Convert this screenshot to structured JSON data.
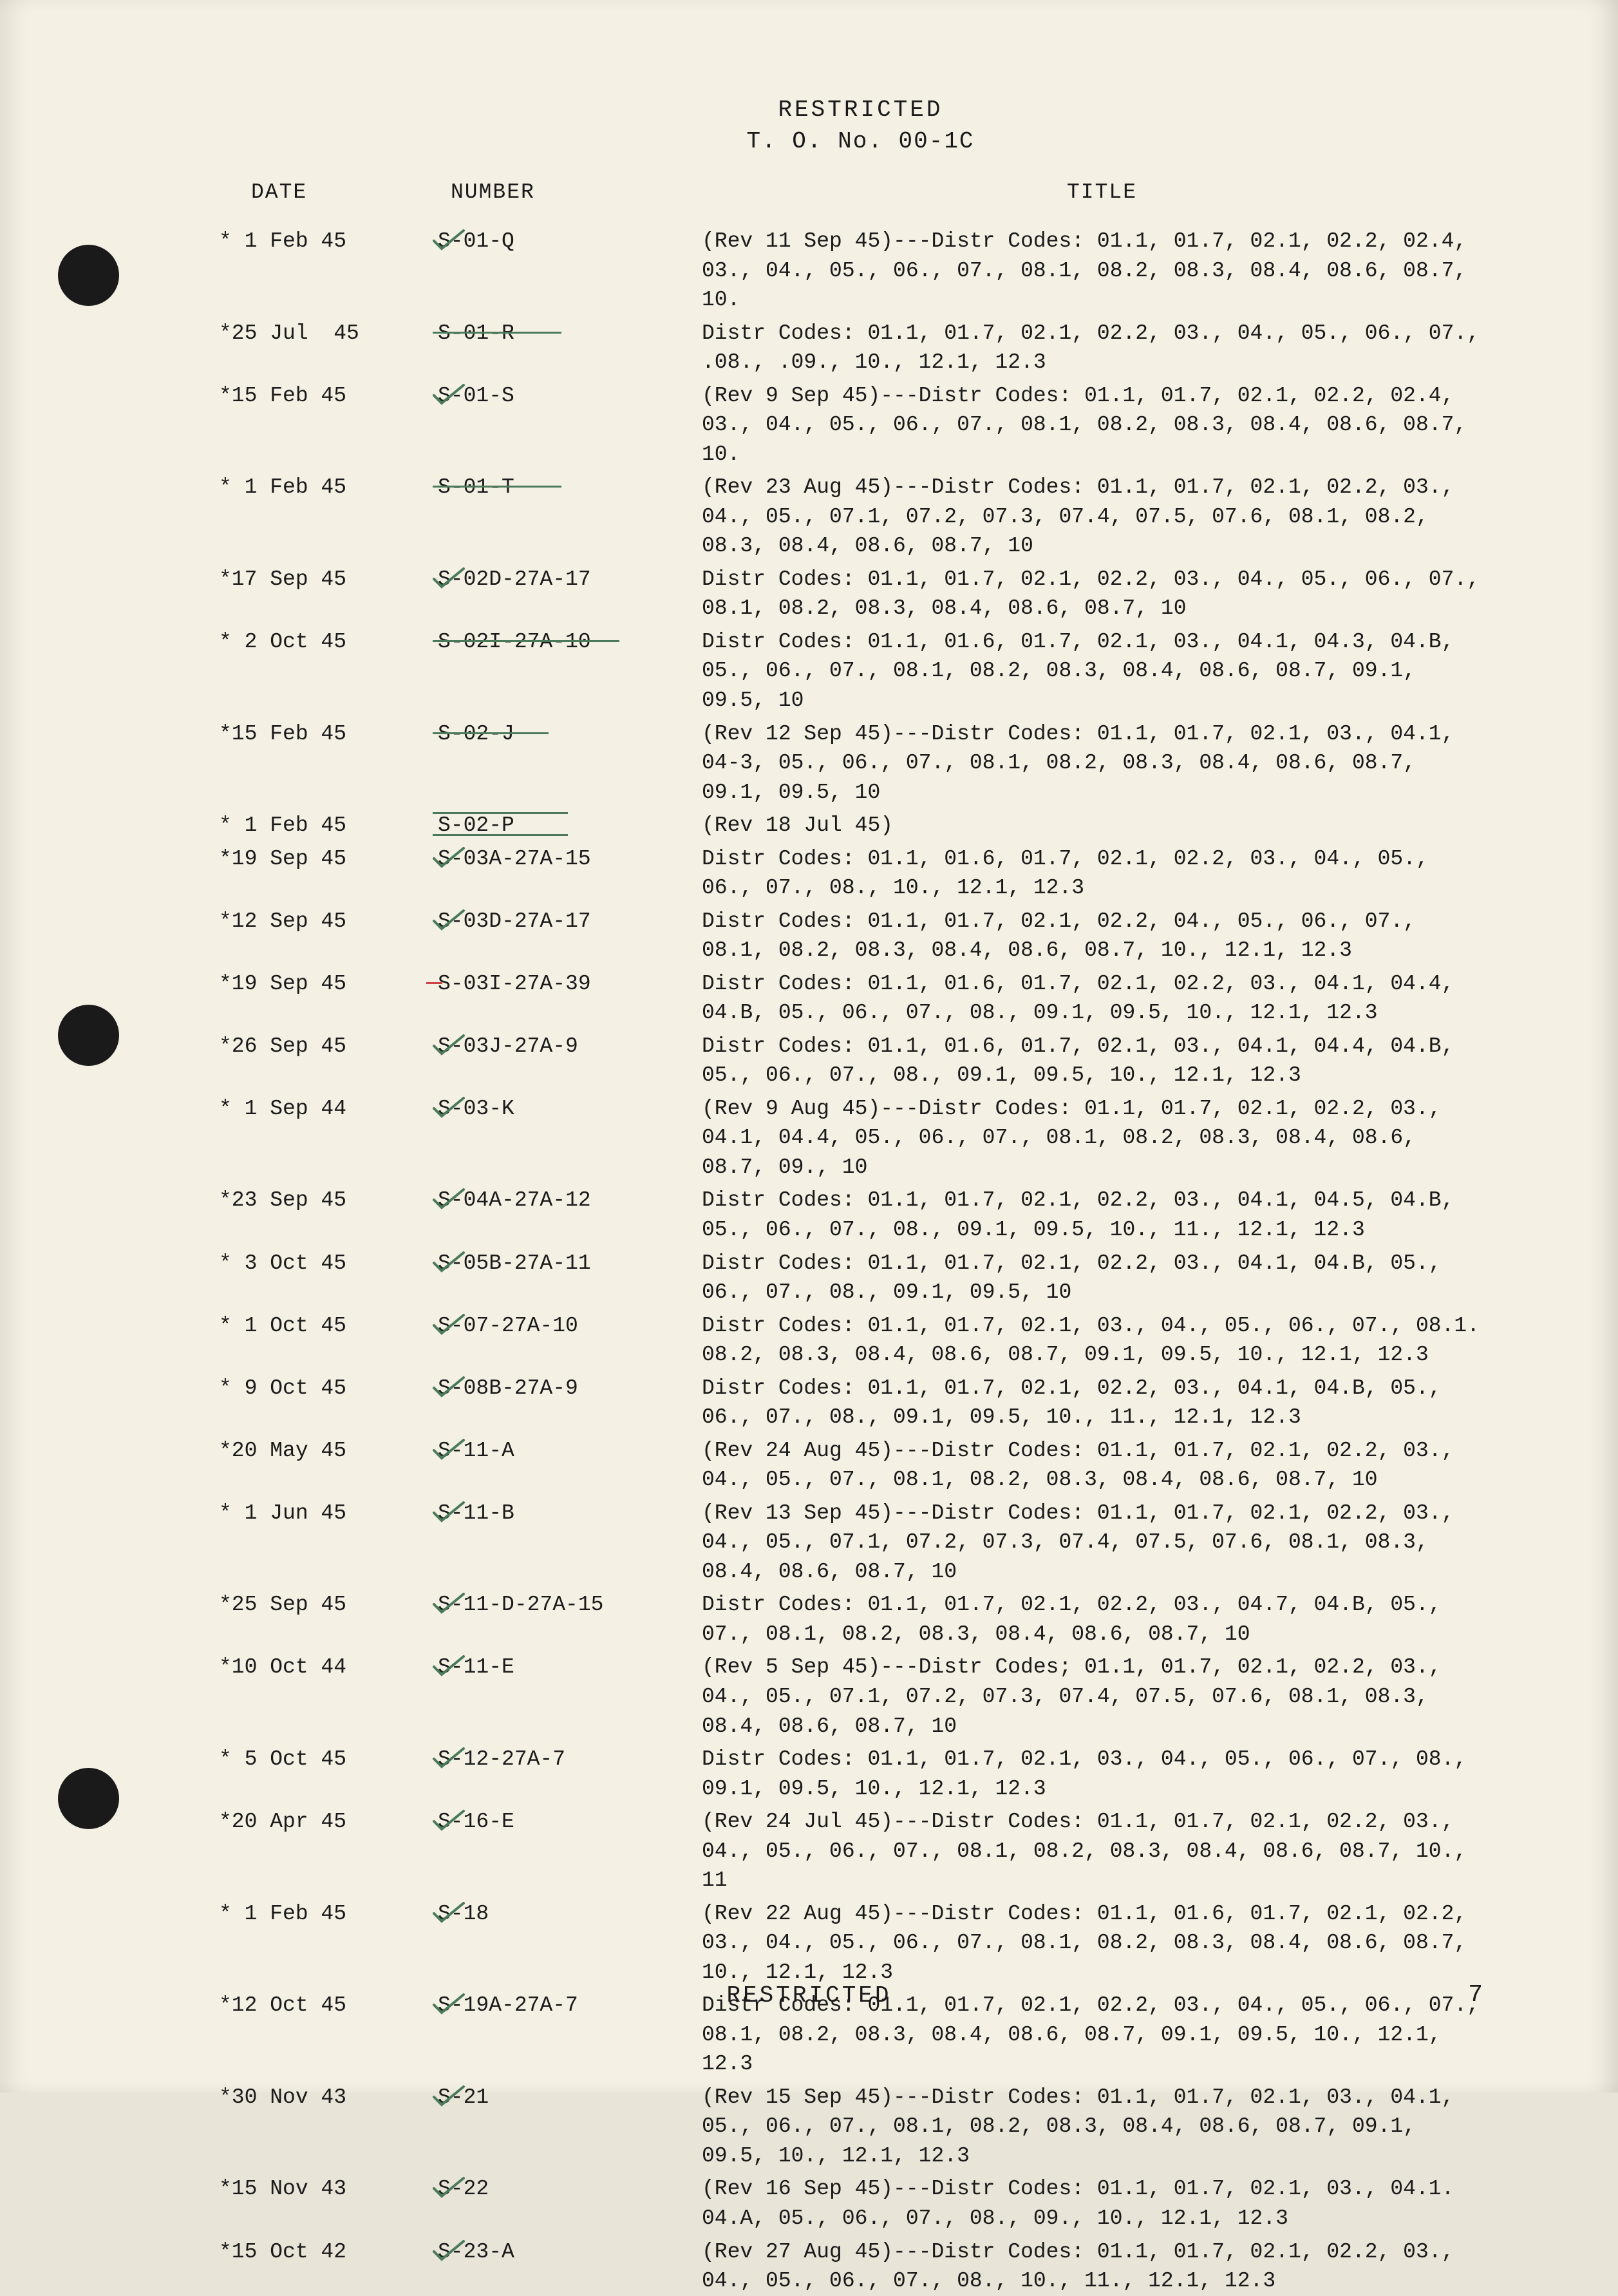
{
  "header": {
    "classification": "RESTRICTED",
    "docNumber": "T. O. No. 00-1C"
  },
  "columnHeaders": {
    "date": "DATE",
    "number": "NUMBER",
    "title": "TITLE"
  },
  "footer": {
    "classification": "RESTRICTED",
    "pageNumber": "7"
  },
  "colors": {
    "pageBg": "#f4f0e4",
    "text": "#1a1a1a",
    "checkGreen": "#4a7a5a",
    "strikeGreen": "#4a7a5a",
    "redMark": "#c44"
  },
  "rows": [
    {
      "date": "* 1 Feb 45",
      "number": "S-01-Q",
      "mark": "check",
      "title": "(Rev 11 Sep 45)---Distr Codes: 01.1, 01.7, 02.1, 02.2, 02.4, 03., 04., 05., 06., 07., 08.1, 08.2, 08.3, 08.4, 08.6, 08.7, 10."
    },
    {
      "date": "*25 Jul  45",
      "number": "S-01-R",
      "mark": "strike",
      "strikeW": 200,
      "title": "Distr Codes: 01.1, 01.7, 02.1, 02.2, 03., 04., 05., 06., 07., .08., .09., 10., 12.1, 12.3"
    },
    {
      "date": "*15 Feb 45",
      "number": "S-01-S",
      "mark": "check",
      "title": "(Rev 9 Sep 45)---Distr Codes: 01.1, 01.7, 02.1, 02.2, 02.4, 03., 04., 05., 06., 07., 08.1, 08.2, 08.3, 08.4, 08.6, 08.7, 10."
    },
    {
      "date": "* 1 Feb 45",
      "number": "S-01-T",
      "mark": "strike",
      "strikeW": 200,
      "title": "(Rev 23 Aug 45)---Distr Codes: 01.1, 01.7, 02.1, 02.2, 03., 04., 05., 07.1, 07.2, 07.3, 07.4, 07.5, 07.6, 08.1, 08.2, 08.3, 08.4, 08.6, 08.7, 10"
    },
    {
      "date": "*17 Sep 45",
      "number": "S-02D-27A-17",
      "mark": "check",
      "title": "Distr Codes: 01.1, 01.7, 02.1, 02.2, 03., 04., 05., 06., 07., 08.1, 08.2, 08.3, 08.4, 08.6, 08.7, 10"
    },
    {
      "date": "* 2 Oct 45",
      "number": "S-02I-27A-10",
      "mark": "strike",
      "strikeW": 290,
      "title": "Distr Codes: 01.1, 01.6, 01.7, 02.1, 03., 04.1, 04.3, 04.B, 05., 06., 07., 08.1, 08.2, 08.3, 08.4, 08.6, 08.7, 09.1, 09.5, 10"
    },
    {
      "date": "*15 Feb 45",
      "number": "S-02-J",
      "mark": "strike",
      "strikeW": 180,
      "title": "(Rev 12 Sep 45)---Distr Codes: 01.1, 01.7, 02.1, 03., 04.1, 04-3, 05., 06., 07., 08.1, 08.2, 08.3, 08.4, 08.6, 08.7, 09.1, 09.5, 10"
    },
    {
      "date": "* 1 Feb 45",
      "number": "S-02-P",
      "mark": "underline",
      "strikeW": 210,
      "title": "(Rev 18 Jul 45)"
    },
    {
      "date": "*19 Sep 45",
      "number": "S-03A-27A-15",
      "mark": "check",
      "title": "Distr Codes: 01.1, 01.6, 01.7, 02.1, 02.2, 03., 04., 05., 06., 07., 08., 10., 12.1, 12.3"
    },
    {
      "date": "*12 Sep 45",
      "number": "S-03D-27A-17",
      "mark": "check",
      "title": "Distr Codes: 01.1, 01.7, 02.1, 02.2, 04., 05., 06., 07., 08.1, 08.2, 08.3, 08.4, 08.6, 08.7, 10., 12.1, 12.3"
    },
    {
      "date": "*19 Sep 45",
      "number": "S-03I-27A-39",
      "mark": "red",
      "title": "Distr Codes: 01.1, 01.6, 01.7, 02.1, 02.2, 03., 04.1, 04.4, 04.B, 05., 06., 07., 08., 09.1, 09.5, 10., 12.1, 12.3"
    },
    {
      "date": "*26 Sep 45",
      "number": "S-03J-27A-9",
      "mark": "check",
      "title": "Distr Codes: 01.1, 01.6, 01.7, 02.1, 03., 04.1, 04.4, 04.B, 05., 06., 07., 08., 09.1, 09.5, 10., 12.1, 12.3"
    },
    {
      "date": "* 1 Sep 44",
      "number": "S-03-K",
      "mark": "check",
      "title": "(Rev 9 Aug 45)---Distr Codes: 01.1, 01.7, 02.1, 02.2, 03., 04.1, 04.4, 05., 06., 07., 08.1, 08.2, 08.3, 08.4, 08.6, 08.7, 09., 10"
    },
    {
      "date": "*23 Sep 45",
      "number": "S-04A-27A-12",
      "mark": "check",
      "title": "Distr Codes: 01.1, 01.7, 02.1, 02.2, 03., 04.1, 04.5, 04.B, 05., 06., 07., 08., 09.1, 09.5, 10., 11., 12.1, 12.3"
    },
    {
      "date": "* 3 Oct 45",
      "number": "S-05B-27A-11",
      "mark": "check",
      "title": "Distr Codes: 01.1, 01.7, 02.1, 02.2, 03., 04.1, 04.B, 05., 06., 07., 08., 09.1, 09.5, 10"
    },
    {
      "date": "* 1 Oct 45",
      "number": "S-07-27A-10",
      "mark": "check",
      "title": "Distr Codes: 01.1, 01.7, 02.1, 03., 04., 05., 06., 07., 08.1. 08.2, 08.3, 08.4, 08.6, 08.7, 09.1, 09.5, 10., 12.1, 12.3"
    },
    {
      "date": "* 9 Oct 45",
      "number": "S-08B-27A-9",
      "mark": "check",
      "title": "Distr Codes: 01.1, 01.7, 02.1, 02.2, 03., 04.1, 04.B, 05., 06., 07., 08., 09.1, 09.5, 10., 11., 12.1, 12.3"
    },
    {
      "date": "*20 May 45",
      "number": "S-11-A",
      "mark": "check",
      "title": "(Rev 24 Aug 45)---Distr Codes: 01.1, 01.7, 02.1, 02.2, 03., 04., 05., 07., 08.1, 08.2, 08.3, 08.4, 08.6, 08.7, 10"
    },
    {
      "date": "* 1 Jun 45",
      "number": "S-11-B",
      "mark": "check",
      "title": "(Rev 13 Sep 45)---Distr Codes: 01.1, 01.7, 02.1, 02.2, 03., 04., 05., 07.1, 07.2, 07.3, 07.4, 07.5, 07.6, 08.1, 08.3, 08.4, 08.6, 08.7, 10"
    },
    {
      "date": "*25 Sep 45",
      "number": "S-11-D-27A-15",
      "mark": "check",
      "title": "Distr Codes: 01.1, 01.7, 02.1, 02.2, 03., 04.7, 04.B, 05., 07., 08.1, 08.2, 08.3, 08.4, 08.6, 08.7, 10"
    },
    {
      "date": "*10 Oct 44",
      "number": "S-11-E",
      "mark": "check",
      "title": "(Rev 5 Sep 45)---Distr Codes; 01.1, 01.7, 02.1, 02.2, 03., 04., 05., 07.1, 07.2, 07.3, 07.4, 07.5, 07.6, 08.1, 08.3, 08.4, 08.6, 08.7, 10"
    },
    {
      "date": "* 5 Oct 45",
      "number": "S-12-27A-7",
      "mark": "check",
      "title": "Distr Codes: 01.1, 01.7, 02.1, 03., 04., 05., 06., 07., 08., 09.1, 09.5, 10., 12.1, 12.3"
    },
    {
      "date": "*20 Apr 45",
      "number": "S-16-E",
      "mark": "check",
      "title": "(Rev 24 Jul 45)---Distr Codes: 01.1, 01.7, 02.1, 02.2, 03., 04., 05., 06., 07., 08.1, 08.2, 08.3, 08.4, 08.6, 08.7, 10., 11"
    },
    {
      "date": "* 1 Feb 45",
      "number": "S-18",
      "mark": "check",
      "title": "(Rev 22 Aug 45)---Distr Codes: 01.1, 01.6, 01.7, 02.1, 02.2, 03., 04., 05., 06., 07., 08.1, 08.2, 08.3, 08.4, 08.6, 08.7, 10., 12.1, 12.3"
    },
    {
      "date": "*12 Oct 45",
      "number": "S-19A-27A-7",
      "mark": "check",
      "title": "Distr Codes: 01.1, 01.7, 02.1, 02.2, 03., 04., 05., 06., 07., 08.1, 08.2, 08.3, 08.4, 08.6, 08.7, 09.1, 09.5, 10., 12.1, 12.3"
    },
    {
      "date": "*30 Nov 43",
      "number": "S-21",
      "mark": "check",
      "title": "(Rev 15 Sep 45)---Distr Codes: 01.1, 01.7, 02.1, 03., 04.1, 05., 06., 07., 08.1, 08.2, 08.3, 08.4, 08.6, 08.7, 09.1, 09.5, 10., 12.1, 12.3"
    },
    {
      "date": "*15 Nov 43",
      "number": "S-22",
      "mark": "check",
      "title": "(Rev 16 Sep 45)---Distr Codes: 01.1, 01.7, 02.1, 03., 04.1. 04.A, 05., 06., 07., 08., 09., 10., 12.1, 12.3"
    },
    {
      "date": "*15 Oct 42",
      "number": "S-23-A",
      "mark": "check",
      "title": "(Rev 27 Aug 45)---Distr Codes: 01.1, 01.7, 02.1, 02.2, 03., 04., 05., 06., 07., 08., 10., 11., 12.1, 12.3"
    }
  ]
}
